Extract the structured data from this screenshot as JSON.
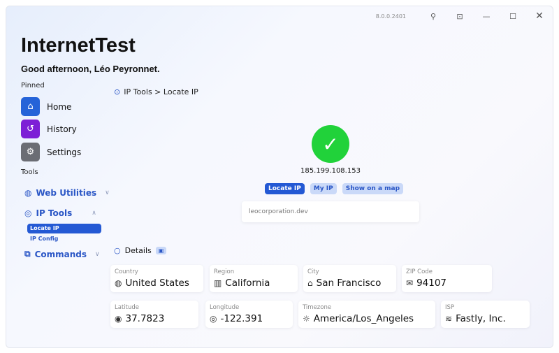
{
  "window": {
    "version": "8.0.0.2401",
    "pin_icon": "pin-icon",
    "mini_icon": "compact-mode-icon"
  },
  "app": {
    "title": "InternetTest",
    "greeting": "Good afternoon, Léo Peyronnet."
  },
  "sidebar": {
    "pinned_label": "Pinned",
    "pinned": [
      {
        "label": "Home",
        "color": "#2563d8",
        "icon": "home-icon"
      },
      {
        "label": "History",
        "color": "#7d1fd6",
        "icon": "history-icon"
      },
      {
        "label": "Settings",
        "color": "#6b6d74",
        "icon": "gear-icon"
      }
    ],
    "tools_label": "Tools",
    "tools": [
      {
        "label": "Web Utilities",
        "icon": "globe-icon"
      },
      {
        "label": "IP Tools",
        "icon": "location-icon",
        "sub": [
          "Locate IP",
          "IP Config"
        ]
      },
      {
        "label": "Commands",
        "icon": "terminal-icon"
      }
    ]
  },
  "main": {
    "breadcrumb": "IP Tools > Locate IP",
    "status_color": "#21d23a",
    "ip": "185.199.108.153",
    "buttons": {
      "locate": "Locate IP",
      "my_ip": "My IP",
      "map": "Show on a map"
    },
    "input_value": "leocorporation.dev",
    "details_label": "Details",
    "fields": [
      {
        "label": "Country",
        "value": "United States",
        "icon": "globe-icon"
      },
      {
        "label": "Region",
        "value": "California",
        "icon": "map-icon"
      },
      {
        "label": "City",
        "value": "San Francisco",
        "icon": "city-icon"
      },
      {
        "label": "ZIP Code",
        "value": "94107",
        "icon": "mail-icon"
      },
      {
        "label": "Latitude",
        "value": "37.7823",
        "icon": "target-icon"
      },
      {
        "label": "Longitude",
        "value": "-122.391",
        "icon": "location-icon"
      },
      {
        "label": "Timezone",
        "value": "America/Los_Angeles",
        "icon": "sun-icon"
      },
      {
        "label": "ISP",
        "value": "Fastly, Inc.",
        "icon": "wifi-icon"
      }
    ]
  }
}
